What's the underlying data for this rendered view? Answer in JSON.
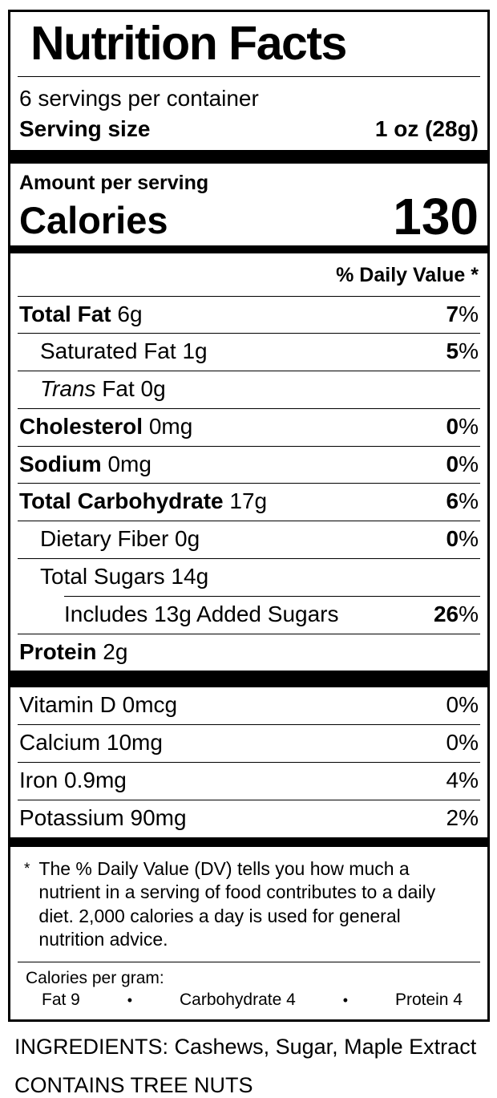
{
  "label": {
    "title": "Nutrition Facts",
    "servings_per_container": "6 servings per container",
    "serving_size": {
      "label": "Serving size",
      "value": "1 oz (28g)"
    },
    "amount_per_serving": "Amount per serving",
    "calories": {
      "label": "Calories",
      "value": "130"
    },
    "daily_value_header": "% Daily Value *",
    "percent_sign": "%",
    "nutrients": [
      {
        "name": "Total Fat",
        "amount": "6g",
        "dv": "7"
      },
      {
        "name": "Saturated Fat",
        "amount": "1g",
        "dv": "5"
      },
      {
        "name": "Trans",
        "amount": "Fat 0g",
        "dv": ""
      },
      {
        "name": "Cholesterol",
        "amount": "0mg",
        "dv": "0"
      },
      {
        "name": "Sodium",
        "amount": "0mg",
        "dv": "0"
      },
      {
        "name": "Total Carbohydrate",
        "amount": "17g",
        "dv": "6"
      },
      {
        "name": "Dietary Fiber",
        "amount": "0g",
        "dv": "0"
      },
      {
        "name": "Total Sugars",
        "amount": "14g",
        "dv": ""
      },
      {
        "name": "Includes 13g Added Sugars",
        "amount": "",
        "dv": "26"
      },
      {
        "name": "Protein",
        "amount": "2g",
        "dv": ""
      }
    ],
    "vitamins": [
      {
        "name": "Vitamin D 0mcg",
        "dv": "0%"
      },
      {
        "name": "Calcium 10mg",
        "dv": "0%"
      },
      {
        "name": "Iron 0.9mg",
        "dv": "4%"
      },
      {
        "name": "Potassium 90mg",
        "dv": "2%"
      }
    ],
    "footnote": {
      "marker": "*",
      "text": "The % Daily Value (DV) tells you how much a nutrient in a serving of food contributes to a daily diet. 2,000 calories a day is used for general nutrition advice."
    },
    "calories_per_gram": {
      "label": "Calories per gram:",
      "bullet": "•",
      "items": [
        "Fat 9",
        "Carbohydrate 4",
        "Protein 4"
      ]
    }
  },
  "below_label": {
    "ingredients": "INGREDIENTS: Cashews, Sugar, Maple Extract",
    "contains": "CONTAINS TREE NUTS"
  }
}
